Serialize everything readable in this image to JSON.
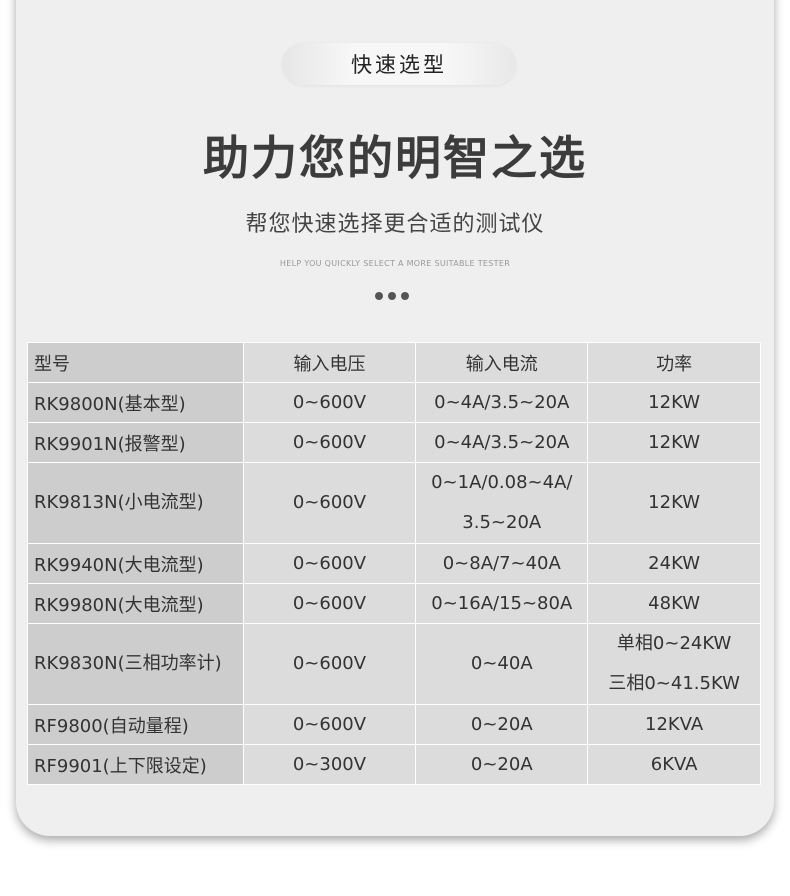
{
  "badge": "快速选型",
  "title": "助力您的明智之选",
  "subtitle": "帮您快速选择更合适的测试仪",
  "subtitle_en": "HELP YOU QUICKLY SELECT A MORE SUITABLE TESTER",
  "table": {
    "headers": [
      "型号",
      "输入电压",
      "输入电流",
      "功率"
    ],
    "rows": [
      [
        "RK9800N(基本型)",
        "0~600V",
        "0~4A/3.5~20A",
        "12KW"
      ],
      [
        "RK9901N(报警型)",
        "0~600V",
        "0~4A/3.5~20A",
        "12KW"
      ],
      [
        "RK9813N(小电流型)",
        "0~600V",
        "0~1A/0.08~4A/\n3.5~20A",
        "12KW"
      ],
      [
        "RK9940N(大电流型)",
        "0~600V",
        "0~8A/7~40A",
        "24KW"
      ],
      [
        "RK9980N(大电流型)",
        "0~600V",
        "0~16A/15~80A",
        "48KW"
      ],
      [
        "RK9830N(三相功率计)",
        "0~600V",
        "0~40A",
        "单相0~24KW\n三相0~41.5KW"
      ],
      [
        "RF9800(自动量程)",
        "0~600V",
        "0~20A",
        "12KVA"
      ],
      [
        "RF9901(上下限设定)",
        "0~300V",
        "0~20A",
        "6KVA"
      ]
    ]
  }
}
